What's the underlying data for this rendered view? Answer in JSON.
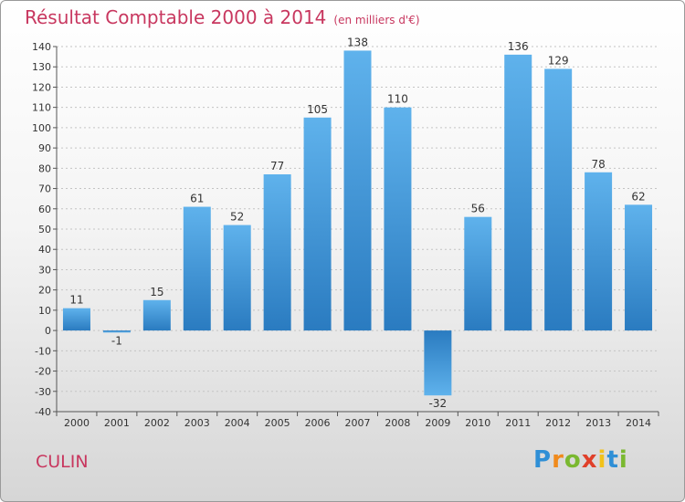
{
  "header": {
    "title": "Résultat Comptable 2000 à 2014",
    "subtitle": "(en milliers d'€)"
  },
  "footer": {
    "commune": "CULIN",
    "logo_letters": [
      "P",
      "r",
      "o",
      "x",
      "i",
      "t",
      "i"
    ]
  },
  "colors": {
    "title": "#c8375f",
    "bar_light": "#5fb2ec",
    "bar_dark": "#2a7bc0"
  },
  "chart_data": {
    "type": "bar",
    "title": "Résultat Comptable 2000 à 2014",
    "subtitle": "(en milliers d'€)",
    "categories": [
      "2000",
      "2001",
      "2002",
      "2003",
      "2004",
      "2005",
      "2006",
      "2007",
      "2008",
      "2009",
      "2010",
      "2011",
      "2012",
      "2013",
      "2014"
    ],
    "values": [
      11,
      -1,
      15,
      61,
      52,
      77,
      105,
      138,
      110,
      -32,
      56,
      136,
      129,
      78,
      62
    ],
    "ylim": [
      -40,
      140
    ],
    "yticks": [
      -40,
      -30,
      -20,
      -10,
      0,
      10,
      20,
      30,
      40,
      50,
      60,
      70,
      80,
      90,
      100,
      110,
      120,
      130,
      140
    ],
    "grid": true,
    "legend": "none"
  }
}
